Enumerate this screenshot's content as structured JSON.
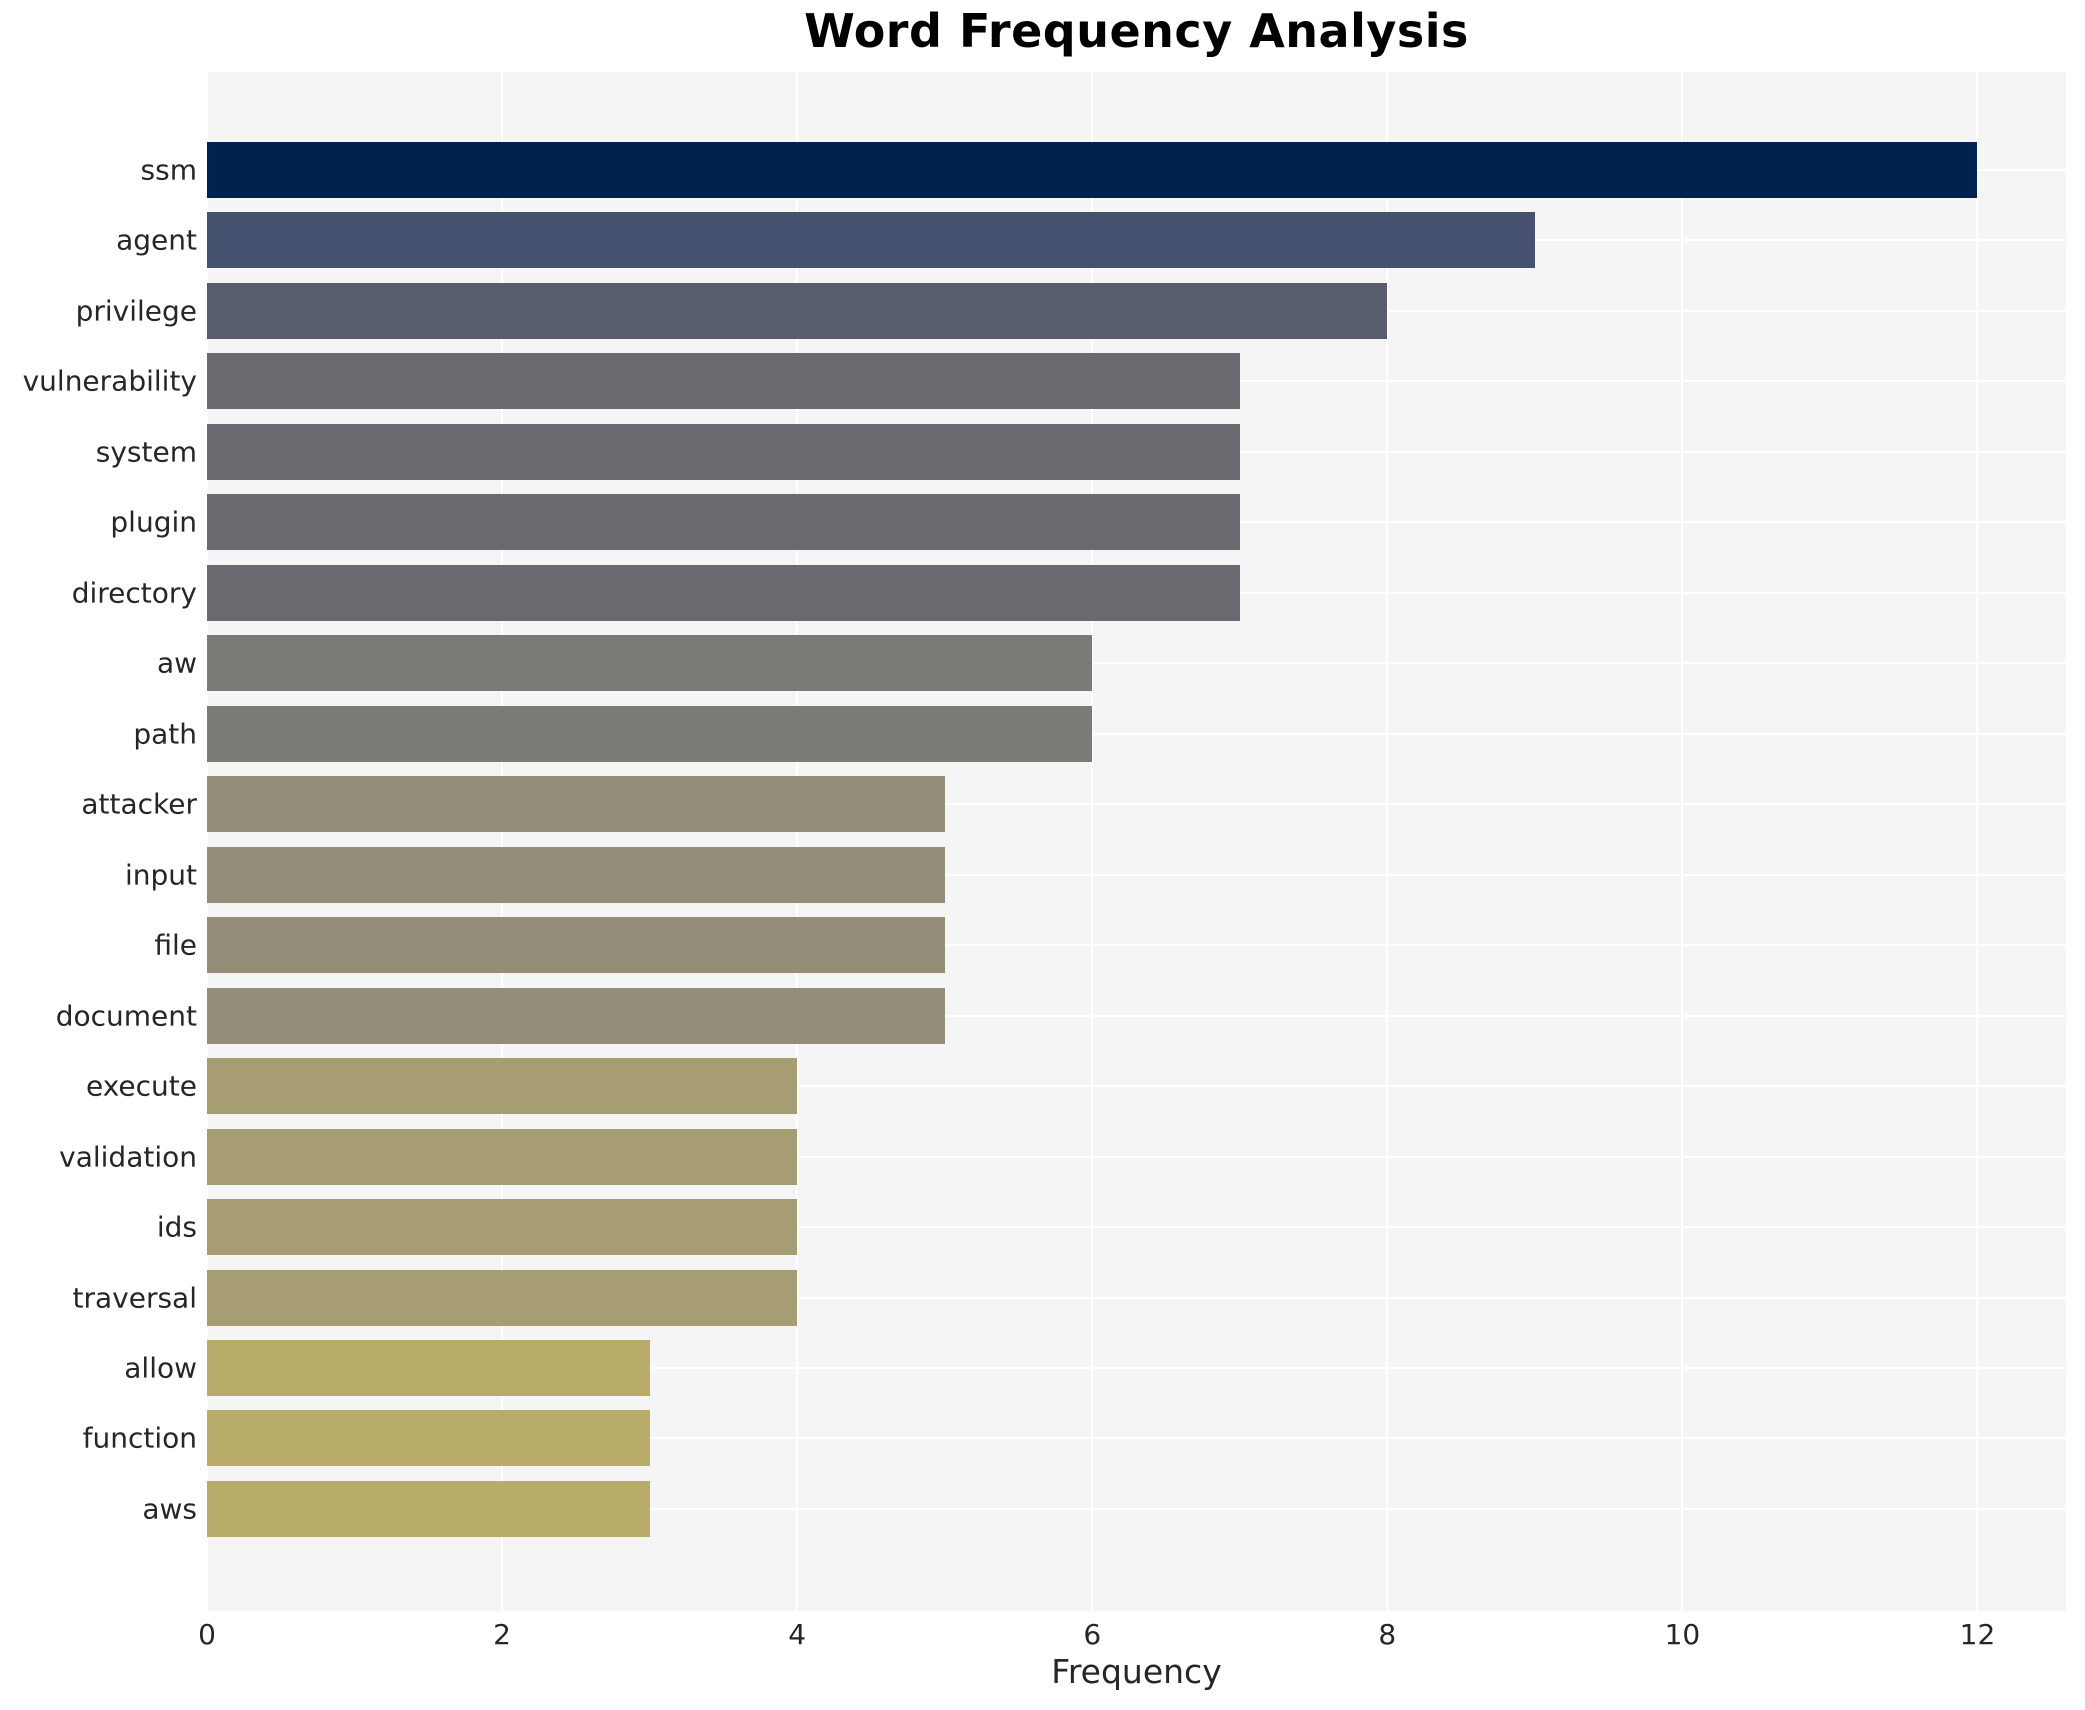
{
  "chart_data": {
    "type": "bar",
    "orientation": "horizontal",
    "title": "Word Frequency Analysis",
    "xlabel": "Frequency",
    "ylabel": "",
    "categories": [
      "ssm",
      "agent",
      "privilege",
      "vulnerability",
      "system",
      "plugin",
      "directory",
      "aw",
      "path",
      "attacker",
      "input",
      "file",
      "document",
      "execute",
      "validation",
      "ids",
      "traversal",
      "allow",
      "function",
      "aws"
    ],
    "values": [
      12,
      9,
      8,
      7,
      7,
      7,
      7,
      6,
      6,
      5,
      5,
      5,
      5,
      4,
      4,
      4,
      4,
      3,
      3,
      3
    ],
    "bar_colors": [
      "#00224e",
      "#45516e",
      "#575d6d",
      "#696970",
      "#696970",
      "#696970",
      "#696970",
      "#7b7a77",
      "#7b7a77",
      "#948e78",
      "#948e78",
      "#948e78",
      "#948e78",
      "#a69d72",
      "#a69d72",
      "#a69d72",
      "#a69d72",
      "#b9ab6a",
      "#b9ab6a",
      "#b9ab6a"
    ],
    "colormap": "cividis-reversed",
    "xlim": [
      0,
      12.6
    ],
    "xticks": [
      0,
      2,
      4,
      6,
      8,
      10,
      12
    ],
    "grid": true,
    "legend": "none",
    "plot_bg_color": "#f5f5f6",
    "grid_color": "#ffffff",
    "text_color": "#262626"
  }
}
